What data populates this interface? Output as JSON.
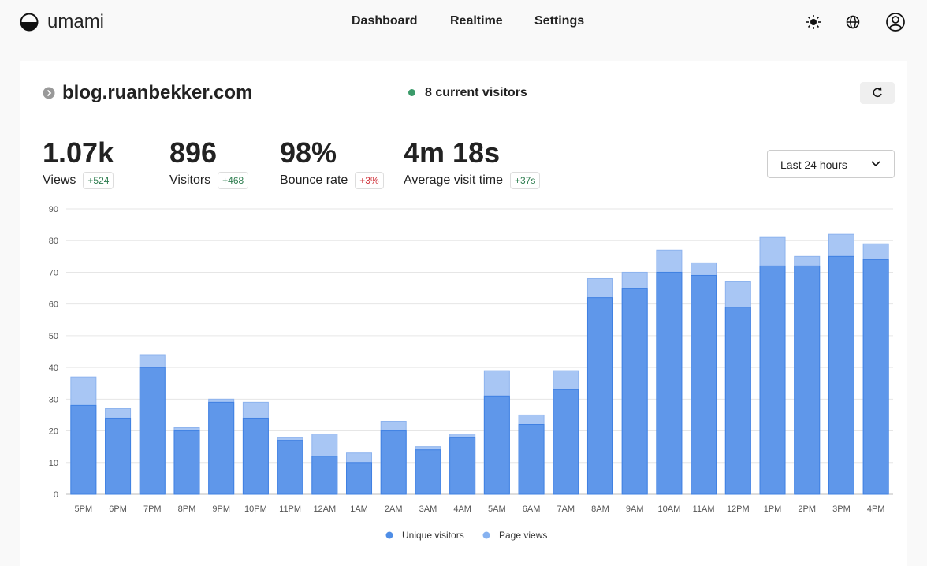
{
  "header": {
    "brand": "umami",
    "nav": [
      "Dashboard",
      "Realtime",
      "Settings"
    ]
  },
  "website": {
    "name": "blog.ruanbekker.com",
    "current_visitors": "8 current visitors",
    "date_range": "Last 24 hours"
  },
  "metrics": [
    {
      "value": "1.07k",
      "label": "Views",
      "change": "+524",
      "change_color": "#2e7d4f"
    },
    {
      "value": "896",
      "label": "Visitors",
      "change": "+468",
      "change_color": "#2e7d4f"
    },
    {
      "value": "98%",
      "label": "Bounce rate",
      "change": "+3%",
      "change_color": "#d0343c"
    },
    {
      "value": "4m 18s",
      "label": "Average visit time",
      "change": "+37s",
      "change_color": "#2e7d4f"
    }
  ],
  "chart_data": {
    "type": "bar",
    "overlap": true,
    "categories": [
      "5PM",
      "6PM",
      "7PM",
      "8PM",
      "9PM",
      "10PM",
      "11PM",
      "12AM",
      "1AM",
      "2AM",
      "3AM",
      "4AM",
      "5AM",
      "6AM",
      "7AM",
      "8AM",
      "9AM",
      "10AM",
      "11AM",
      "12PM",
      "1PM",
      "2PM",
      "3PM",
      "4PM"
    ],
    "series": [
      {
        "name": "Page views",
        "color": "#a8c6f4",
        "stroke": "#8db3ee",
        "legend_color": "#86b2f0",
        "values": [
          37,
          27,
          44,
          21,
          30,
          29,
          18,
          19,
          13,
          23,
          15,
          19,
          39,
          25,
          39,
          68,
          70,
          77,
          73,
          67,
          81,
          75,
          82,
          79
        ]
      },
      {
        "name": "Unique visitors",
        "color": "#5f97ea",
        "stroke": "#3f80e2",
        "legend_color": "#4f8ee6",
        "values": [
          28,
          24,
          40,
          20,
          29,
          24,
          17,
          12,
          10,
          20,
          14,
          18,
          31,
          22,
          33,
          62,
          65,
          70,
          69,
          59,
          72,
          72,
          75,
          74
        ]
      }
    ],
    "legend_order": [
      1,
      0
    ],
    "ylim": [
      0,
      90
    ],
    "yticks": [
      0,
      10,
      20,
      30,
      40,
      50,
      60,
      70,
      80,
      90
    ],
    "grid": true
  }
}
